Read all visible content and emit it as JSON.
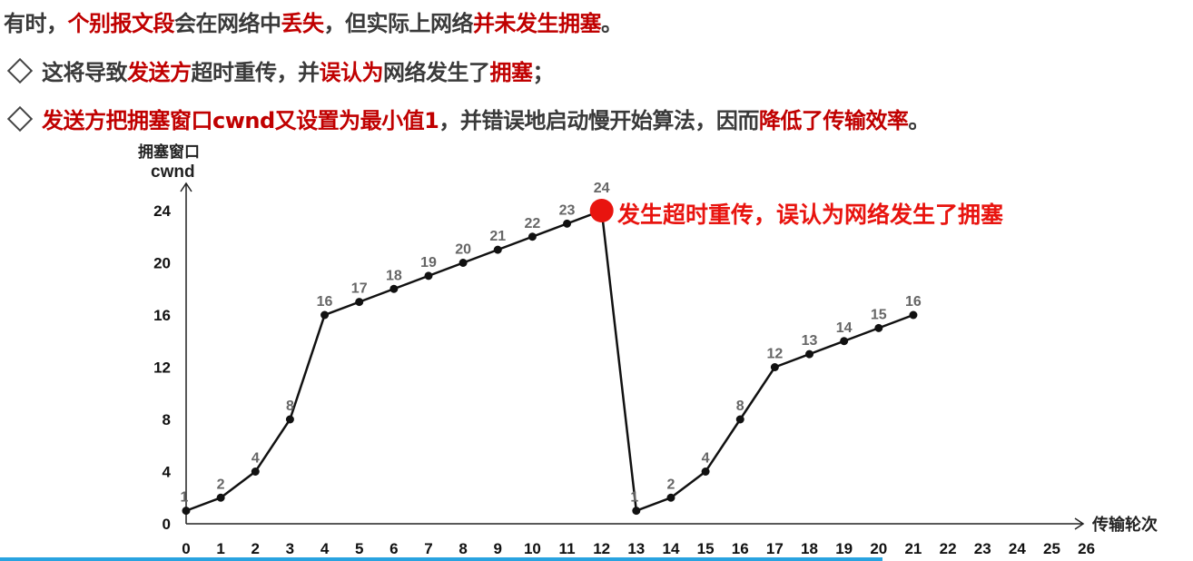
{
  "text_lines": [
    {
      "bullet": false,
      "segments": [
        {
          "t": "有时，",
          "red": false
        },
        {
          "t": "个别报文段",
          "red": true
        },
        {
          "t": "会在网络中",
          "red": false
        },
        {
          "t": "丢失",
          "red": true
        },
        {
          "t": "，但实际上网络",
          "red": false
        },
        {
          "t": "并未发生拥塞",
          "red": true
        },
        {
          "t": "。",
          "red": false
        }
      ]
    },
    {
      "bullet": true,
      "segments": [
        {
          "t": "这将导致",
          "red": false
        },
        {
          "t": "发送方",
          "red": true
        },
        {
          "t": "超时重传，并",
          "red": false
        },
        {
          "t": "误认为",
          "red": true
        },
        {
          "t": "网络发生了",
          "red": false
        },
        {
          "t": "拥塞",
          "red": true
        },
        {
          "t": "；",
          "red": false
        }
      ]
    },
    {
      "bullet": true,
      "segments": [
        {
          "t": "发送方把拥塞窗口cwnd又设置为最小值1",
          "red": true
        },
        {
          "t": "，并错误地启动慢开始算法，因而",
          "red": false
        },
        {
          "t": "降低了传输效率",
          "red": true
        },
        {
          "t": "。",
          "red": false
        }
      ]
    }
  ],
  "colors": {
    "text": "#3a3a3a",
    "emphasis": "#c00000",
    "highlight_point": "#e8140f",
    "line": "#111111",
    "data_label": "#666666",
    "progress": "#29a3e0"
  },
  "video_progress": 0.74,
  "chart_data": {
    "type": "line",
    "ylabel_line1": "拥塞窗口",
    "ylabel_line2": "cwnd",
    "xlabel": "传输轮次",
    "x_ticks": [
      0,
      1,
      2,
      3,
      4,
      5,
      6,
      7,
      8,
      9,
      10,
      11,
      12,
      13,
      14,
      15,
      16,
      17,
      18,
      19,
      20,
      21,
      22,
      23,
      24,
      25,
      26
    ],
    "y_ticks": [
      0,
      4,
      8,
      12,
      16,
      20,
      24
    ],
    "xlim": [
      0,
      26
    ],
    "ylim": [
      0,
      24
    ],
    "grid": false,
    "points": [
      {
        "x": 0,
        "y": 1
      },
      {
        "x": 1,
        "y": 2
      },
      {
        "x": 2,
        "y": 4
      },
      {
        "x": 3,
        "y": 8
      },
      {
        "x": 4,
        "y": 16
      },
      {
        "x": 5,
        "y": 17
      },
      {
        "x": 6,
        "y": 18
      },
      {
        "x": 7,
        "y": 19
      },
      {
        "x": 8,
        "y": 20
      },
      {
        "x": 9,
        "y": 21
      },
      {
        "x": 10,
        "y": 22
      },
      {
        "x": 11,
        "y": 23
      },
      {
        "x": 12,
        "y": 24
      },
      {
        "x": 13,
        "y": 1
      },
      {
        "x": 14,
        "y": 2
      },
      {
        "x": 15,
        "y": 4
      },
      {
        "x": 16,
        "y": 8
      },
      {
        "x": 17,
        "y": 12
      },
      {
        "x": 18,
        "y": 13
      },
      {
        "x": 19,
        "y": 14
      },
      {
        "x": 20,
        "y": 15
      },
      {
        "x": 21,
        "y": 16
      }
    ],
    "highlight": {
      "x": 12,
      "y": 24,
      "annotation": "发生超时重传，误认为网络发生了拥塞"
    }
  }
}
